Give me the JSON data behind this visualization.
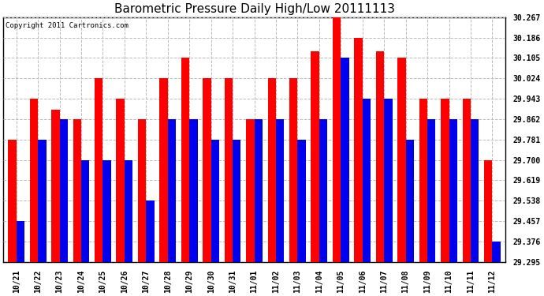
{
  "title": "Barometric Pressure Daily High/Low 20111113",
  "copyright": "Copyright 2011 Cartronics.com",
  "dates": [
    "10/21",
    "10/22",
    "10/23",
    "10/24",
    "10/25",
    "10/26",
    "10/27",
    "10/28",
    "10/29",
    "10/30",
    "10/31",
    "11/01",
    "11/02",
    "11/03",
    "11/04",
    "11/05",
    "11/06",
    "11/07",
    "11/08",
    "11/09",
    "11/10",
    "11/11",
    "11/12"
  ],
  "highs": [
    29.781,
    29.943,
    29.9,
    29.862,
    30.024,
    29.943,
    29.862,
    30.024,
    30.105,
    30.024,
    30.024,
    29.862,
    30.024,
    30.024,
    30.13,
    30.267,
    30.186,
    30.13,
    30.105,
    29.943,
    29.943,
    29.943,
    29.7
  ],
  "lows": [
    29.457,
    29.781,
    29.862,
    29.7,
    29.7,
    29.7,
    29.538,
    29.862,
    29.862,
    29.781,
    29.781,
    29.862,
    29.862,
    29.781,
    29.862,
    30.105,
    29.943,
    29.943,
    29.781,
    29.862,
    29.862,
    29.862,
    29.376
  ],
  "ylim_min": 29.295,
  "ylim_max": 30.267,
  "yticks": [
    29.295,
    29.376,
    29.457,
    29.538,
    29.619,
    29.7,
    29.781,
    29.862,
    29.943,
    30.024,
    30.105,
    30.186,
    30.267
  ],
  "high_color": "#ff0000",
  "low_color": "#0000ee",
  "bg_color": "#ffffff",
  "grid_color": "#bbbbbb",
  "title_fontsize": 11,
  "bar_width": 0.38,
  "figwidth": 6.9,
  "figheight": 3.75,
  "dpi": 100
}
